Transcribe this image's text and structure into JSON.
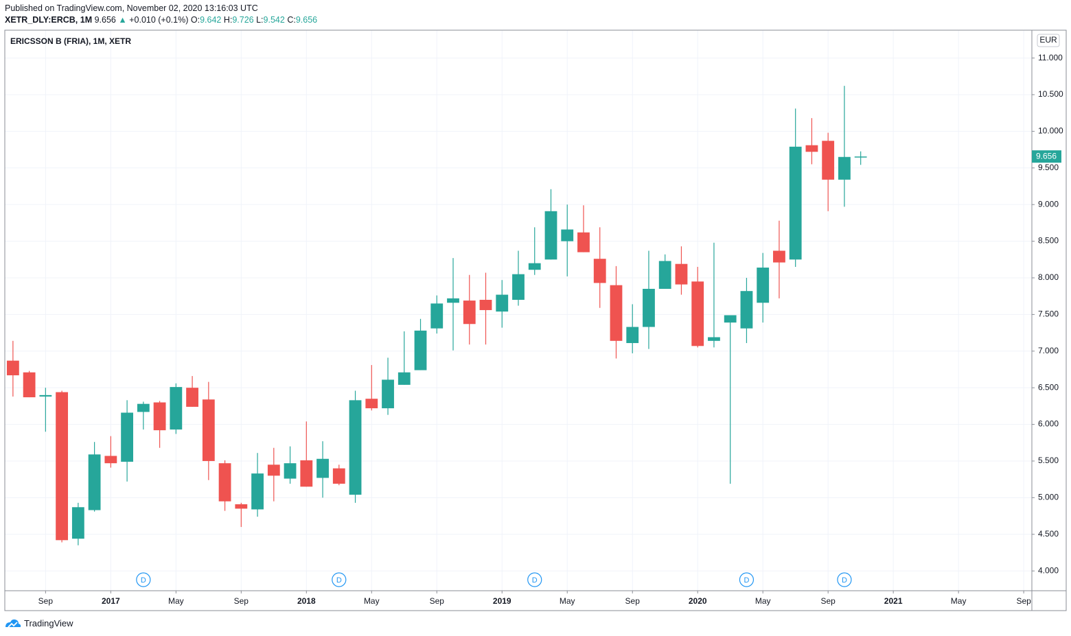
{
  "header": {
    "published": "Published on TradingView.com, November 02, 2020 13:16:03 UTC",
    "symbol": "XETR_DLY:ERCB, 1M",
    "last": "9.656",
    "arrow": "▲",
    "change": "+0.010 (+0.1%)",
    "o": "O:",
    "o_val": "9.642",
    "h": "H:",
    "h_val": "9.726",
    "l": "L:",
    "l_val": "9.542",
    "c": "C:",
    "c_val": "9.656"
  },
  "footer": {
    "brand": "TradingView"
  },
  "chart_data": {
    "type": "candlestick",
    "title": "ERICSSON B (FRIA), 1M, XETR",
    "currency": "EUR",
    "up_color": "#26a69a",
    "down_color": "#ef5350",
    "grid": true,
    "x": [
      "2016-07",
      "2016-08",
      "2016-09",
      "2016-10",
      "2016-11",
      "2016-12",
      "2017-01",
      "2017-02",
      "2017-03",
      "2017-04",
      "2017-05",
      "2017-06",
      "2017-07",
      "2017-08",
      "2017-09",
      "2017-10",
      "2017-11",
      "2017-12",
      "2018-01",
      "2018-02",
      "2018-03",
      "2018-04",
      "2018-05",
      "2018-06",
      "2018-07",
      "2018-08",
      "2018-09",
      "2018-10",
      "2018-11",
      "2018-12",
      "2019-01",
      "2019-02",
      "2019-03",
      "2019-04",
      "2019-05",
      "2019-06",
      "2019-07",
      "2019-08",
      "2019-09",
      "2019-10",
      "2019-11",
      "2019-12",
      "2020-01",
      "2020-02",
      "2020-03",
      "2020-04",
      "2020-05",
      "2020-06",
      "2020-07",
      "2020-08",
      "2020-09",
      "2020-10",
      "2020-11"
    ],
    "open": [
      6.87,
      6.71,
      6.38,
      6.44,
      4.44,
      4.83,
      5.57,
      5.49,
      6.17,
      6.3,
      5.93,
      6.5,
      6.34,
      5.47,
      4.91,
      4.84,
      5.45,
      5.26,
      5.51,
      5.27,
      5.4,
      5.04,
      6.35,
      6.22,
      6.54,
      6.74,
      7.31,
      7.66,
      7.69,
      7.7,
      7.54,
      7.7,
      8.11,
      8.25,
      8.5,
      8.62,
      8.26,
      7.9,
      7.11,
      7.33,
      7.85,
      8.19,
      7.95,
      7.14,
      7.39,
      7.31,
      7.66,
      8.37,
      8.25,
      9.81,
      9.87,
      9.34,
      9.642
    ],
    "high": [
      7.14,
      6.73,
      6.5,
      6.46,
      4.93,
      5.76,
      5.84,
      6.33,
      6.31,
      6.32,
      6.56,
      6.66,
      6.58,
      5.51,
      4.93,
      5.61,
      5.68,
      5.7,
      6.04,
      5.77,
      5.45,
      6.46,
      6.81,
      6.91,
      7.27,
      7.44,
      7.76,
      8.27,
      8.04,
      8.07,
      7.97,
      8.37,
      8.69,
      9.21,
      9.0,
      8.99,
      8.69,
      8.16,
      7.64,
      8.37,
      8.32,
      8.43,
      8.15,
      8.48,
      7.49,
      8.0,
      8.34,
      8.78,
      10.31,
      10.18,
      9.98,
      10.62,
      9.726
    ],
    "low": [
      6.38,
      6.37,
      5.9,
      4.39,
      4.35,
      4.81,
      5.41,
      5.22,
      5.93,
      5.68,
      5.87,
      6.24,
      5.24,
      4.82,
      4.6,
      4.74,
      4.95,
      5.19,
      5.15,
      5.0,
      5.17,
      4.93,
      6.19,
      6.13,
      6.54,
      6.74,
      7.24,
      7.01,
      7.09,
      7.09,
      7.32,
      7.62,
      8.04,
      8.25,
      8.02,
      8.35,
      7.59,
      6.9,
      6.97,
      7.03,
      7.85,
      7.77,
      7.05,
      7.05,
      5.19,
      7.11,
      7.39,
      7.72,
      8.15,
      9.55,
      8.91,
      8.97,
      9.542
    ],
    "close": [
      6.67,
      6.37,
      6.4,
      4.42,
      4.87,
      5.59,
      5.47,
      6.16,
      6.28,
      5.92,
      6.51,
      6.24,
      5.5,
      4.95,
      4.85,
      5.33,
      5.3,
      5.47,
      5.15,
      5.53,
      5.19,
      6.33,
      6.22,
      6.61,
      6.71,
      7.28,
      7.65,
      7.72,
      7.37,
      7.56,
      7.77,
      8.05,
      8.2,
      8.91,
      8.66,
      8.35,
      7.93,
      7.14,
      7.33,
      7.85,
      8.23,
      7.91,
      7.07,
      7.19,
      7.49,
      7.82,
      8.14,
      8.21,
      9.79,
      9.72,
      9.34,
      9.65,
      9.656
    ],
    "xlim": [
      "2016-07",
      "2021-09"
    ],
    "xticks": [
      {
        "value": "2016-09",
        "label": "Sep"
      },
      {
        "value": "2017-01",
        "label": "2017"
      },
      {
        "value": "2017-05",
        "label": "May"
      },
      {
        "value": "2017-09",
        "label": "Sep"
      },
      {
        "value": "2018-01",
        "label": "2018"
      },
      {
        "value": "2018-05",
        "label": "May"
      },
      {
        "value": "2018-09",
        "label": "Sep"
      },
      {
        "value": "2019-01",
        "label": "2019"
      },
      {
        "value": "2019-05",
        "label": "May"
      },
      {
        "value": "2019-09",
        "label": "Sep"
      },
      {
        "value": "2020-01",
        "label": "2020"
      },
      {
        "value": "2020-05",
        "label": "May"
      },
      {
        "value": "2020-09",
        "label": "Sep"
      },
      {
        "value": "2021-01",
        "label": "2021"
      },
      {
        "value": "2021-05",
        "label": "May"
      },
      {
        "value": "2021-09",
        "label": "Sep"
      }
    ],
    "ylim": [
      3.73,
      11.38
    ],
    "yticks": [
      {
        "value": 4,
        "label": "4.000"
      },
      {
        "value": 4.5,
        "label": "4.500"
      },
      {
        "value": 5,
        "label": "5.000"
      },
      {
        "value": 5.5,
        "label": "5.500"
      },
      {
        "value": 6,
        "label": "6.000"
      },
      {
        "value": 6.5,
        "label": "6.500"
      },
      {
        "value": 7,
        "label": "7.000"
      },
      {
        "value": 7.5,
        "label": "7.500"
      },
      {
        "value": 8,
        "label": "8.000"
      },
      {
        "value": 8.5,
        "label": "8.500"
      },
      {
        "value": 9,
        "label": "9.000"
      },
      {
        "value": 9.5,
        "label": "9.500"
      },
      {
        "value": 10,
        "label": "10.000"
      },
      {
        "value": 10.5,
        "label": "10.500"
      },
      {
        "value": 11,
        "label": "11.000"
      }
    ],
    "dividends": [
      {
        "x": "2017-03",
        "label": "D"
      },
      {
        "x": "2018-03",
        "label": "D"
      },
      {
        "x": "2019-03",
        "label": "D"
      },
      {
        "x": "2020-04",
        "label": "D"
      },
      {
        "x": "2020-10",
        "label": "D"
      }
    ]
  }
}
